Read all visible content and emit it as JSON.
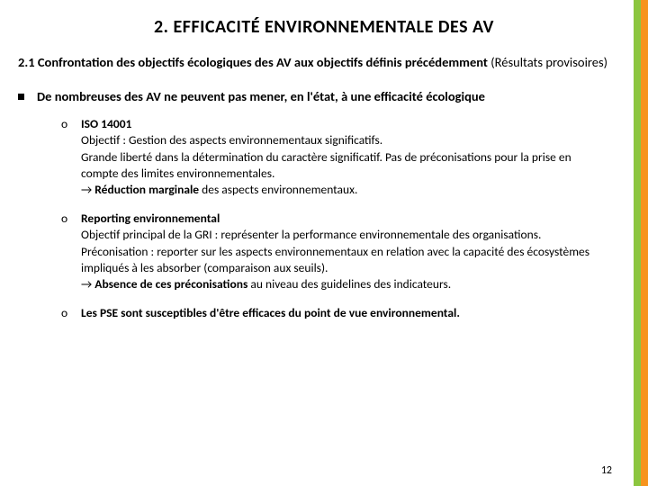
{
  "colors": {
    "bar_green": "#8cc63f",
    "bar_orange": "#f7941d",
    "text": "#000000",
    "bg": "#ffffff"
  },
  "title": {
    "text": "2. EFFICACITÉ ENVIRONNEMENTALE DES AV",
    "fontsize": 20
  },
  "subtitle": {
    "bold": "2.1 Confrontation des objectifs écologiques des AV aux objectifs définis précédemment",
    "rest": " (Résultats provisoires)"
  },
  "main_bullet": "De nombreuses des AV ne peuvent pas mener, en l'état, à une efficacité écologique",
  "items": [
    {
      "marker": "o",
      "head": "ISO 14001",
      "body": "Objectif : Gestion des aspects environnementaux significatifs.\nGrande liberté dans la détermination du caractère significatif. Pas de préconisations pour la prise en compte des limites environnementales.",
      "arrow_pre": "→ ",
      "arrow_em": "Réduction marginale",
      "arrow_post": " des aspects environnementaux."
    },
    {
      "marker": "o",
      "head": "Reporting environnemental",
      "body": "Objectif principal de la GRI : représenter la performance environnementale des organisations.\nPréconisation : reporter sur les aspects environnementaux en relation avec la capacité des écosystèmes impliqués à les absorber (comparaison aux seuils).",
      "arrow_pre": "→ ",
      "arrow_em": "Absence de ces préconisations",
      "arrow_post": " au niveau des guidelines des indicateurs."
    },
    {
      "marker": "o",
      "head": "Les PSE sont susceptibles d'être efficaces du point de vue environnemental.",
      "body": "",
      "arrow_pre": "",
      "arrow_em": "",
      "arrow_post": ""
    }
  ],
  "page_number": "12"
}
